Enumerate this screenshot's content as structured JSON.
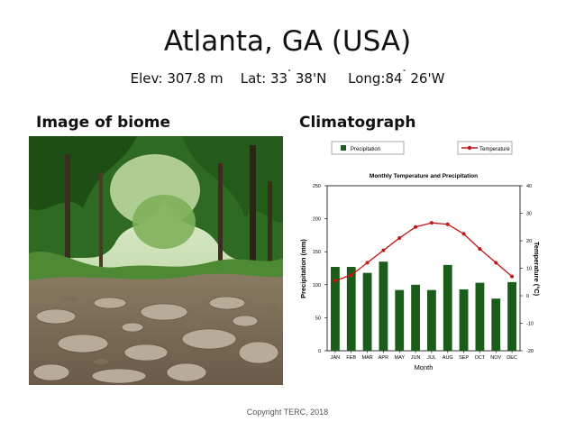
{
  "header": {
    "title": "Atlanta, GA (USA)",
    "elev": "Elev: 307.8 m",
    "lat_pre": "Lat: 33",
    "lat_post": " 38'N",
    "long_pre": "Long:84",
    "long_post": " 26'W",
    "degree": "˚"
  },
  "sections": {
    "biome": "Image of biome",
    "climatograph": "Climatograph"
  },
  "footer": {
    "copyright": "Copyright TERC, 2018"
  },
  "colors": {
    "bar": "#1a5c1a",
    "line": "#c01616",
    "sky": "#e8f2d8",
    "foliage": "#3d7a2a",
    "rock": "#9a8a78"
  },
  "chart_data": {
    "type": "bar+line",
    "title": "Monthly Temperature and Precipitation",
    "xlabel": "Month",
    "ylabel": "Precipitation (mm)",
    "y2label": "Temperature (°C)",
    "legend_position": "top",
    "categories": [
      "JAN",
      "FEB",
      "MAR",
      "APR",
      "MAY",
      "JUN",
      "JUL",
      "AUG",
      "SEP",
      "OCT",
      "NOV",
      "DEC"
    ],
    "ylim": [
      0,
      250
    ],
    "yticks": [
      0,
      50,
      100,
      150,
      200,
      250
    ],
    "y2lim": [
      -20,
      40
    ],
    "y2ticks": [
      -20,
      -10,
      0,
      10,
      20,
      30,
      40
    ],
    "series": [
      {
        "name": "Precipitation",
        "type": "bar",
        "axis": "left",
        "values": [
          127,
          127,
          118,
          135,
          92,
          100,
          92,
          130,
          93,
          103,
          79,
          104
        ]
      },
      {
        "name": "Temperature",
        "type": "line",
        "axis": "right",
        "values": [
          5.5,
          7.5,
          12,
          16.5,
          21,
          25,
          26.5,
          26,
          22.5,
          17,
          12,
          7
        ]
      }
    ]
  }
}
